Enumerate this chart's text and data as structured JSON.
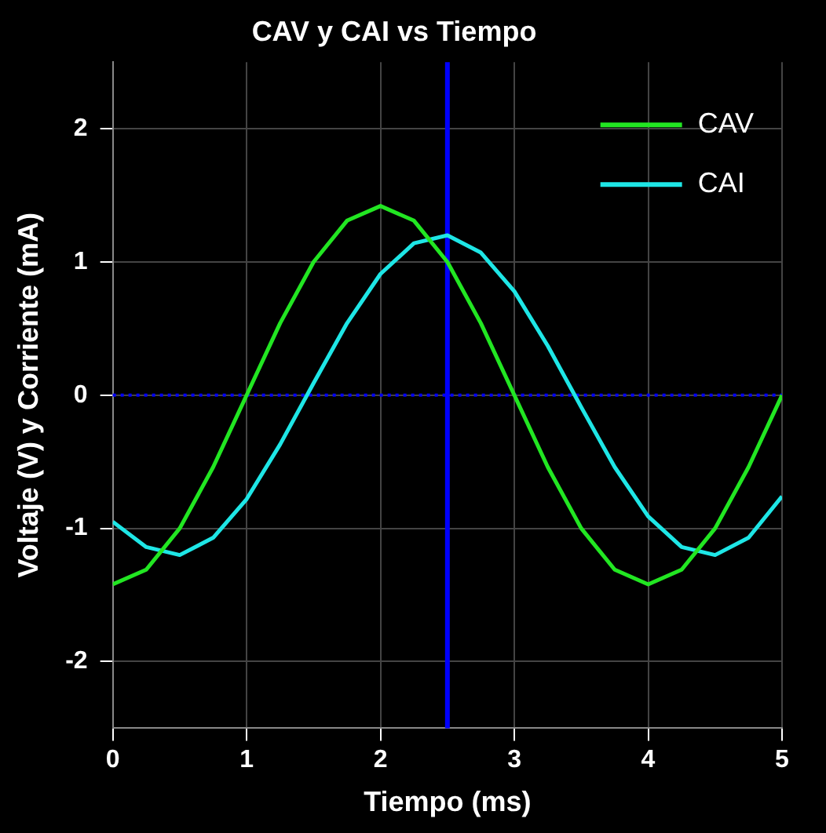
{
  "chart_data": {
    "type": "line",
    "title": "CAV y CAI vs Tiempo",
    "xlabel": "Tiempo (ms)",
    "ylabel": "Voltaje (V) y Corriente (mA)",
    "xlim": [
      0,
      5
    ],
    "xticks": [
      0,
      1,
      2,
      3,
      4,
      5
    ],
    "ylim": [
      -2.5,
      2.5
    ],
    "yticks": [
      -2,
      -1,
      0,
      1,
      2
    ],
    "grid": true,
    "legend": "top right",
    "marker": "none",
    "line_style": "solid",
    "series": [
      {
        "name": "CAV",
        "color": "#22e622",
        "x": [
          0,
          0.25,
          0.5,
          0.75,
          1,
          1.25,
          1.5,
          1.75,
          2,
          2.25,
          2.5,
          2.75,
          3,
          3.25,
          3.5,
          3.75,
          4,
          4.25,
          4.5,
          4.75,
          5
        ],
        "values": [
          -1.42,
          -1.31,
          -1.0,
          -0.54,
          0,
          0.54,
          1.0,
          1.31,
          1.42,
          1.31,
          1.0,
          0.54,
          0,
          -0.54,
          -1.0,
          -1.31,
          -1.42,
          -1.31,
          -1.0,
          -0.54,
          0
        ]
      },
      {
        "name": "CAI",
        "color": "#1ee6e6",
        "x": [
          0,
          0.25,
          0.5,
          0.75,
          1,
          1.25,
          1.5,
          1.75,
          2,
          2.25,
          2.5,
          2.75,
          3,
          3.25,
          3.5,
          3.75,
          4,
          4.25,
          4.5,
          4.75,
          5
        ],
        "values": [
          -0.95,
          -1.14,
          -1.2,
          -1.07,
          -0.78,
          -0.37,
          0.09,
          0.54,
          0.91,
          1.14,
          1.2,
          1.07,
          0.78,
          0.37,
          -0.09,
          -0.54,
          -0.91,
          -1.14,
          -1.2,
          -1.07,
          -0.76
        ]
      }
    ],
    "ref_lines": [
      {
        "axis": "x",
        "value": 2.5,
        "color": "#0000ff",
        "line_style": "solid"
      },
      {
        "axis": "y",
        "value": 0,
        "color": "#0000ff",
        "line_style": "dotted"
      }
    ]
  }
}
